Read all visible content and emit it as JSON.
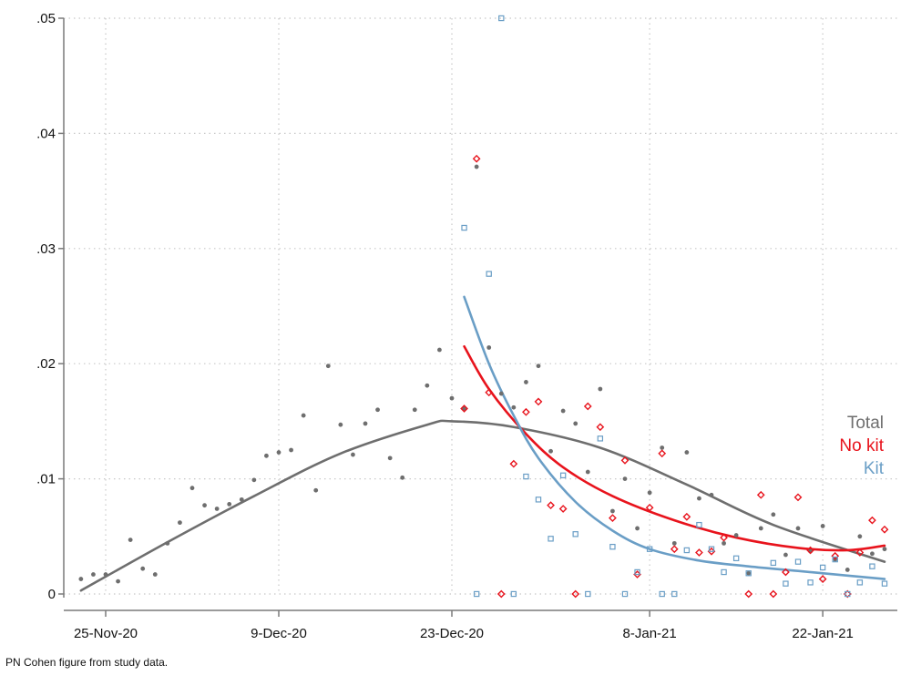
{
  "chart_data": {
    "type": "scatter",
    "title": "",
    "xlabel": "",
    "ylabel": "",
    "x_axis": {
      "type": "date",
      "range": [
        "2020-11-23",
        "2021-01-27"
      ],
      "ticks": [
        {
          "date": "2020-11-25",
          "label": "25-Nov-20"
        },
        {
          "date": "2020-12-09",
          "label": "9-Dec-20"
        },
        {
          "date": "2020-12-23",
          "label": "23-Dec-20"
        },
        {
          "date": "2021-01-08",
          "label": "8-Jan-21"
        },
        {
          "date": "2021-01-22",
          "label": "22-Jan-21"
        }
      ]
    },
    "y_axis": {
      "range": [
        0,
        0.05
      ],
      "ticks": [
        {
          "value": 0,
          "label": "0"
        },
        {
          "value": 0.01,
          "label": ".01"
        },
        {
          "value": 0.02,
          "label": ".02"
        },
        {
          "value": 0.03,
          "label": ".03"
        },
        {
          "value": 0.04,
          "label": ".04"
        },
        {
          "value": 0.05,
          "label": ".05"
        }
      ]
    },
    "grid": true,
    "legend_placement": "right",
    "series": [
      {
        "name": "Total",
        "color": "#6e6e6e",
        "marker": "dot",
        "points": [
          [
            "2020-11-23",
            0.0013
          ],
          [
            "2020-11-24",
            0.0017
          ],
          [
            "2020-11-25",
            0.0017
          ],
          [
            "2020-11-26",
            0.0011
          ],
          [
            "2020-11-27",
            0.0047
          ],
          [
            "2020-11-28",
            0.0022
          ],
          [
            "2020-11-29",
            0.0017
          ],
          [
            "2020-11-30",
            0.0044
          ],
          [
            "2020-12-01",
            0.0062
          ],
          [
            "2020-12-02",
            0.0092
          ],
          [
            "2020-12-03",
            0.0077
          ],
          [
            "2020-12-04",
            0.0074
          ],
          [
            "2020-12-05",
            0.0078
          ],
          [
            "2020-12-06",
            0.0082
          ],
          [
            "2020-12-07",
            0.0099
          ],
          [
            "2020-12-08",
            0.012
          ],
          [
            "2020-12-09",
            0.0123
          ],
          [
            "2020-12-10",
            0.0125
          ],
          [
            "2020-12-11",
            0.0155
          ],
          [
            "2020-12-12",
            0.009
          ],
          [
            "2020-12-13",
            0.0198
          ],
          [
            "2020-12-14",
            0.0147
          ],
          [
            "2020-12-15",
            0.0121
          ],
          [
            "2020-12-16",
            0.0148
          ],
          [
            "2020-12-17",
            0.016
          ],
          [
            "2020-12-18",
            0.0118
          ],
          [
            "2020-12-19",
            0.0101
          ],
          [
            "2020-12-20",
            0.016
          ],
          [
            "2020-12-21",
            0.0181
          ],
          [
            "2020-12-22",
            0.0212
          ],
          [
            "2020-12-23",
            0.017
          ],
          [
            "2020-12-24",
            0.0161
          ],
          [
            "2020-12-25",
            0.0371
          ],
          [
            "2020-12-26",
            0.0214
          ],
          [
            "2020-12-27",
            0.0174
          ],
          [
            "2020-12-28",
            0.0162
          ],
          [
            "2020-12-29",
            0.0184
          ],
          [
            "2020-12-30",
            0.0198
          ],
          [
            "2020-12-31",
            0.0124
          ],
          [
            "2021-01-01",
            0.0159
          ],
          [
            "2021-01-02",
            0.0148
          ],
          [
            "2021-01-03",
            0.0106
          ],
          [
            "2021-01-04",
            0.0178
          ],
          [
            "2021-01-05",
            0.0072
          ],
          [
            "2021-01-06",
            0.01
          ],
          [
            "2021-01-07",
            0.0057
          ],
          [
            "2021-01-08",
            0.0088
          ],
          [
            "2021-01-09",
            0.0127
          ],
          [
            "2021-01-10",
            0.0044
          ],
          [
            "2021-01-11",
            0.0123
          ],
          [
            "2021-01-12",
            0.0083
          ],
          [
            "2021-01-13",
            0.0086
          ],
          [
            "2021-01-14",
            0.0044
          ],
          [
            "2021-01-15",
            0.0051
          ],
          [
            "2021-01-16",
            0.0018
          ],
          [
            "2021-01-17",
            0.0057
          ],
          [
            "2021-01-18",
            0.0069
          ],
          [
            "2021-01-19",
            0.0034
          ],
          [
            "2021-01-20",
            0.0057
          ],
          [
            "2021-01-21",
            0.0037
          ],
          [
            "2021-01-22",
            0.0059
          ],
          [
            "2021-01-23",
            0.003
          ],
          [
            "2021-01-24",
            0.0021
          ],
          [
            "2021-01-25",
            0.005
          ],
          [
            "2021-01-26",
            0.0035
          ],
          [
            "2021-01-27",
            0.0039
          ]
        ],
        "fit": [
          [
            "2020-11-23",
            0.0003
          ],
          [
            "2020-11-30",
            0.0045
          ],
          [
            "2020-12-07",
            0.0085
          ],
          [
            "2020-12-14",
            0.0122
          ],
          [
            "2020-12-21",
            0.0147
          ],
          [
            "2020-12-23",
            0.015
          ],
          [
            "2020-12-28",
            0.0145
          ],
          [
            "2021-01-04",
            0.0127
          ],
          [
            "2021-01-11",
            0.0095
          ],
          [
            "2021-01-18",
            0.006
          ],
          [
            "2021-01-27",
            0.0028
          ]
        ]
      },
      {
        "name": "No kit",
        "color": "#e8131c",
        "marker": "diamond",
        "points": [
          [
            "2020-12-24",
            0.0161
          ],
          [
            "2020-12-25",
            0.0378
          ],
          [
            "2020-12-26",
            0.0175
          ],
          [
            "2020-12-27",
            0.0
          ],
          [
            "2020-12-28",
            0.0113
          ],
          [
            "2020-12-29",
            0.0158
          ],
          [
            "2020-12-30",
            0.0167
          ],
          [
            "2020-12-31",
            0.0077
          ],
          [
            "2021-01-01",
            0.0074
          ],
          [
            "2021-01-02",
            0.0
          ],
          [
            "2021-01-03",
            0.0163
          ],
          [
            "2021-01-04",
            0.0145
          ],
          [
            "2021-01-05",
            0.0066
          ],
          [
            "2021-01-06",
            0.0116
          ],
          [
            "2021-01-07",
            0.0017
          ],
          [
            "2021-01-08",
            0.0075
          ],
          [
            "2021-01-09",
            0.0122
          ],
          [
            "2021-01-10",
            0.0039
          ],
          [
            "2021-01-11",
            0.0067
          ],
          [
            "2021-01-12",
            0.0036
          ],
          [
            "2021-01-13",
            0.0037
          ],
          [
            "2021-01-14",
            0.0049
          ],
          [
            "2021-01-16",
            0.0
          ],
          [
            "2021-01-17",
            0.0086
          ],
          [
            "2021-01-18",
            0.0
          ],
          [
            "2021-01-19",
            0.0019
          ],
          [
            "2021-01-20",
            0.0084
          ],
          [
            "2021-01-21",
            0.0038
          ],
          [
            "2021-01-22",
            0.0013
          ],
          [
            "2021-01-23",
            0.0033
          ],
          [
            "2021-01-24",
            0.0
          ],
          [
            "2021-01-25",
            0.0036
          ],
          [
            "2021-01-26",
            0.0064
          ],
          [
            "2021-01-27",
            0.0056
          ]
        ],
        "fit": [
          [
            "2020-12-24",
            0.0215
          ],
          [
            "2020-12-26",
            0.0178
          ],
          [
            "2020-12-29",
            0.0139
          ],
          [
            "2021-01-01",
            0.011
          ],
          [
            "2021-01-05",
            0.0085
          ],
          [
            "2021-01-10",
            0.0064
          ],
          [
            "2021-01-15",
            0.0049
          ],
          [
            "2021-01-20",
            0.004
          ],
          [
            "2021-01-24",
            0.0038
          ],
          [
            "2021-01-27",
            0.0042
          ]
        ]
      },
      {
        "name": "Kit",
        "color": "#6a9ec6",
        "marker": "square",
        "points": [
          [
            "2020-12-24",
            0.0318
          ],
          [
            "2020-12-25",
            0.0
          ],
          [
            "2020-12-26",
            0.0278
          ],
          [
            "2020-12-27",
            0.05
          ],
          [
            "2020-12-28",
            0.0
          ],
          [
            "2020-12-29",
            0.0102
          ],
          [
            "2020-12-30",
            0.0082
          ],
          [
            "2020-12-31",
            0.0048
          ],
          [
            "2021-01-01",
            0.0103
          ],
          [
            "2021-01-02",
            0.0052
          ],
          [
            "2021-01-03",
            0.0
          ],
          [
            "2021-01-04",
            0.0135
          ],
          [
            "2021-01-05",
            0.0041
          ],
          [
            "2021-01-06",
            0.0
          ],
          [
            "2021-01-07",
            0.0019
          ],
          [
            "2021-01-08",
            0.0039
          ],
          [
            "2021-01-09",
            0.0
          ],
          [
            "2021-01-10",
            0.0
          ],
          [
            "2021-01-11",
            0.0038
          ],
          [
            "2021-01-12",
            0.006
          ],
          [
            "2021-01-13",
            0.0039
          ],
          [
            "2021-01-14",
            0.0019
          ],
          [
            "2021-01-15",
            0.0031
          ],
          [
            "2021-01-16",
            0.0018
          ],
          [
            "2021-01-18",
            0.0027
          ],
          [
            "2021-01-19",
            0.0009
          ],
          [
            "2021-01-20",
            0.0028
          ],
          [
            "2021-01-21",
            0.001
          ],
          [
            "2021-01-22",
            0.0023
          ],
          [
            "2021-01-23",
            0.003
          ],
          [
            "2021-01-24",
            0.0
          ],
          [
            "2021-01-25",
            0.001
          ],
          [
            "2021-01-26",
            0.0024
          ],
          [
            "2021-01-27",
            0.0009
          ]
        ],
        "fit": [
          [
            "2020-12-24",
            0.0258
          ],
          [
            "2020-12-26",
            0.02
          ],
          [
            "2020-12-28",
            0.0155
          ],
          [
            "2020-12-30",
            0.0118
          ],
          [
            "2021-01-02",
            0.008
          ],
          [
            "2021-01-05",
            0.0055
          ],
          [
            "2021-01-08",
            0.0039
          ],
          [
            "2021-01-12",
            0.0029
          ],
          [
            "2021-01-16",
            0.0024
          ],
          [
            "2021-01-20",
            0.002
          ],
          [
            "2021-01-24",
            0.0016
          ],
          [
            "2021-01-27",
            0.0013
          ]
        ]
      }
    ]
  },
  "footnote": "PN Cohen figure from study data."
}
